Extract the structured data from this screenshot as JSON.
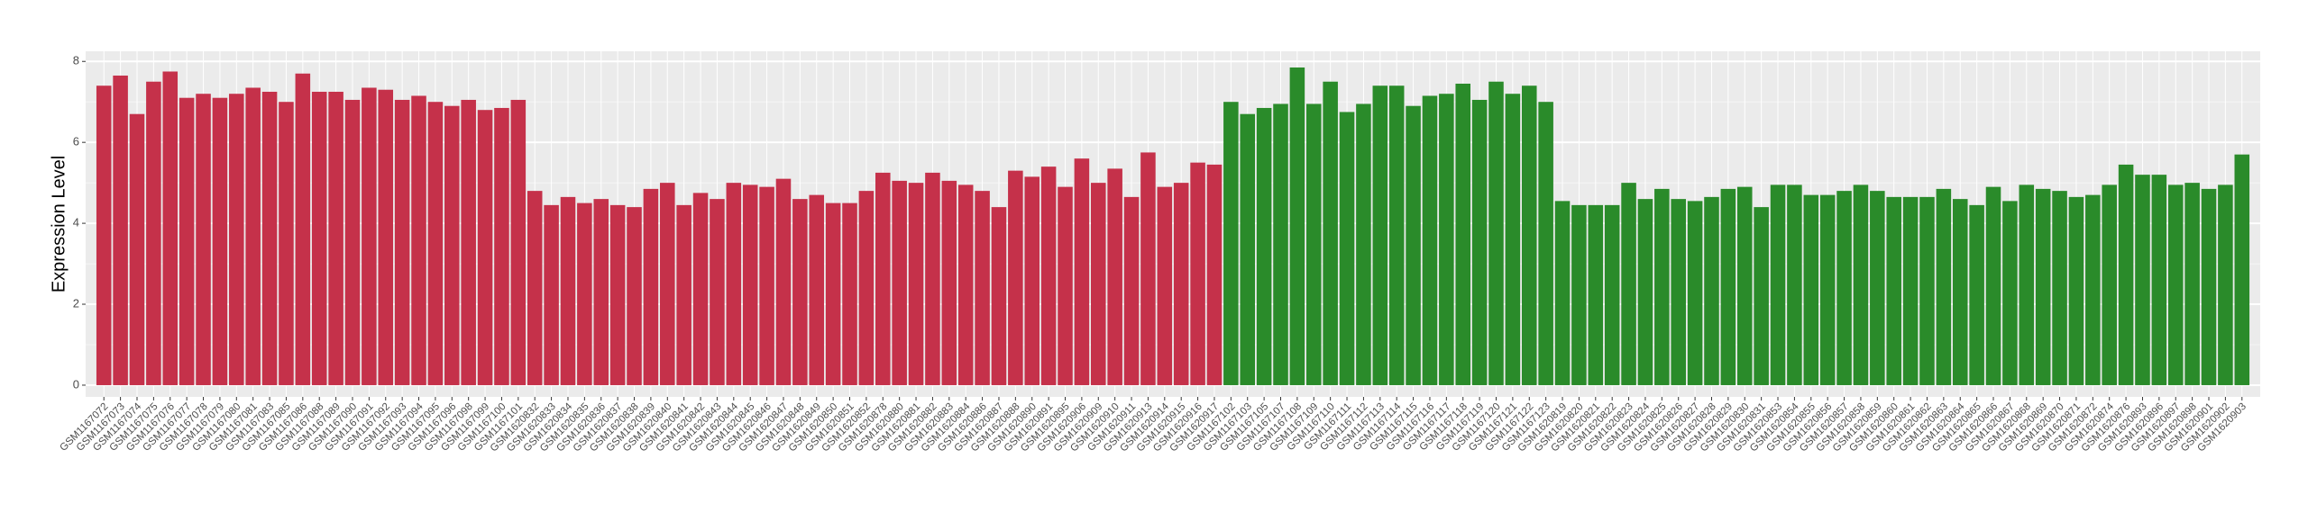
{
  "chart_data": {
    "type": "bar",
    "y_label": "Expression Level",
    "categories": [
      "GSM1167072",
      "GSM1167073",
      "GSM1167074",
      "GSM1167075",
      "GSM1167076",
      "GSM1167077",
      "GSM1167078",
      "GSM1167079",
      "GSM1167080",
      "GSM1167081",
      "GSM1167083",
      "GSM1167085",
      "GSM1167086",
      "GSM1167088",
      "GSM1167089",
      "GSM1167090",
      "GSM1167091",
      "GSM1167092",
      "GSM1167093",
      "GSM1167094",
      "GSM1167095",
      "GSM1167096",
      "GSM1167098",
      "GSM1167099",
      "GSM1167100",
      "GSM1167101",
      "GSM1620832",
      "GSM1620833",
      "GSM1620834",
      "GSM1620835",
      "GSM1620836",
      "GSM1620837",
      "GSM1620838",
      "GSM1620839",
      "GSM1620840",
      "GSM1620841",
      "GSM1620842",
      "GSM1620843",
      "GSM1620844",
      "GSM1620845",
      "GSM1620846",
      "GSM1620847",
      "GSM1620848",
      "GSM1620849",
      "GSM1620850",
      "GSM1620851",
      "GSM1620852",
      "GSM1620878",
      "GSM1620880",
      "GSM1620881",
      "GSM1620882",
      "GSM1620883",
      "GSM1620884",
      "GSM1620886",
      "GSM1620887",
      "GSM1620888",
      "GSM1620890",
      "GSM1620891",
      "GSM1620895",
      "GSM1620906",
      "GSM1620909",
      "GSM1620910",
      "GSM1620911",
      "GSM1620913",
      "GSM1620914",
      "GSM1620915",
      "GSM1620916",
      "GSM1620917",
      "GSM1167102",
      "GSM1167103",
      "GSM1167105",
      "GSM1167107",
      "GSM1167108",
      "GSM1167109",
      "GSM1167110",
      "GSM1167111",
      "GSM1167112",
      "GSM1167113",
      "GSM1167114",
      "GSM1167115",
      "GSM1167116",
      "GSM1167117",
      "GSM1167118",
      "GSM1167119",
      "GSM1167120",
      "GSM1167121",
      "GSM1167122",
      "GSM1167123",
      "GSM1620819",
      "GSM1620820",
      "GSM1620821",
      "GSM1620822",
      "GSM1620823",
      "GSM1620824",
      "GSM1620825",
      "GSM1620826",
      "GSM1620827",
      "GSM1620828",
      "GSM1620829",
      "GSM1620830",
      "GSM1620831",
      "GSM1620853",
      "GSM1620854",
      "GSM1620855",
      "GSM1620856",
      "GSM1620857",
      "GSM1620858",
      "GSM1620859",
      "GSM1620860",
      "GSM1620861",
      "GSM1620862",
      "GSM1620863",
      "GSM1620864",
      "GSM1620865",
      "GSM1620866",
      "GSM1620867",
      "GSM1620868",
      "GSM1620869",
      "GSM1620870",
      "GSM1620871",
      "GSM1620872",
      "GSM1620874",
      "GSM1620876",
      "GSM1620893",
      "GSM1620896",
      "GSM1620897",
      "GSM1620898",
      "GSM1620901",
      "GSM1620902",
      "GSM1620903"
    ],
    "values": [
      7.4,
      7.65,
      6.7,
      7.5,
      7.75,
      7.1,
      7.2,
      7.1,
      7.2,
      7.35,
      7.25,
      7.0,
      7.7,
      7.25,
      7.25,
      7.05,
      7.35,
      7.3,
      7.05,
      7.15,
      7.0,
      6.9,
      7.05,
      6.8,
      6.85,
      7.05,
      4.8,
      4.45,
      4.65,
      4.5,
      4.6,
      4.45,
      4.4,
      4.85,
      5.0,
      4.45,
      4.75,
      4.6,
      5.0,
      4.95,
      4.9,
      5.1,
      4.6,
      4.7,
      4.5,
      4.5,
      4.8,
      5.25,
      5.05,
      5.0,
      5.25,
      5.05,
      4.95,
      4.8,
      4.4,
      5.3,
      5.15,
      5.4,
      4.9,
      5.6,
      5.0,
      5.35,
      4.65,
      5.75,
      4.9,
      5.0,
      5.5,
      5.45,
      7.0,
      6.7,
      6.85,
      6.95,
      7.85,
      6.95,
      7.5,
      6.75,
      6.95,
      7.4,
      7.4,
      6.9,
      7.15,
      7.2,
      7.45,
      7.05,
      7.5,
      7.2,
      7.4,
      7.0,
      4.55,
      4.45,
      4.45,
      4.45,
      5.0,
      4.6,
      4.85,
      4.6,
      4.55,
      4.65,
      4.85,
      4.9,
      4.4,
      4.95,
      4.95,
      4.7,
      4.7,
      4.8,
      4.95,
      4.8,
      4.65,
      4.65,
      4.65,
      4.85,
      4.6,
      4.45,
      4.9,
      4.55,
      4.95,
      4.85,
      4.8,
      4.65,
      4.7,
      4.95,
      5.45,
      5.2,
      5.2,
      4.95,
      5.0,
      4.85,
      4.95,
      5.7
    ],
    "colors": [
      "#c5314a",
      "#c5314a",
      "#c5314a",
      "#c5314a",
      "#c5314a",
      "#c5314a",
      "#c5314a",
      "#c5314a",
      "#c5314a",
      "#c5314a",
      "#c5314a",
      "#c5314a",
      "#c5314a",
      "#c5314a",
      "#c5314a",
      "#c5314a",
      "#c5314a",
      "#c5314a",
      "#c5314a",
      "#c5314a",
      "#c5314a",
      "#c5314a",
      "#c5314a",
      "#c5314a",
      "#c5314a",
      "#c5314a",
      "#c5314a",
      "#c5314a",
      "#c5314a",
      "#c5314a",
      "#c5314a",
      "#c5314a",
      "#c5314a",
      "#c5314a",
      "#c5314a",
      "#c5314a",
      "#c5314a",
      "#c5314a",
      "#c5314a",
      "#c5314a",
      "#c5314a",
      "#c5314a",
      "#c5314a",
      "#c5314a",
      "#c5314a",
      "#c5314a",
      "#c5314a",
      "#c5314a",
      "#c5314a",
      "#c5314a",
      "#c5314a",
      "#c5314a",
      "#c5314a",
      "#c5314a",
      "#c5314a",
      "#c5314a",
      "#c5314a",
      "#c5314a",
      "#c5314a",
      "#c5314a",
      "#c5314a",
      "#c5314a",
      "#c5314a",
      "#c5314a",
      "#c5314a",
      "#c5314a",
      "#c5314a",
      "#c5314a",
      "#2a8b2a",
      "#2a8b2a",
      "#2a8b2a",
      "#2a8b2a",
      "#2a8b2a",
      "#2a8b2a",
      "#2a8b2a",
      "#2a8b2a",
      "#2a8b2a",
      "#2a8b2a",
      "#2a8b2a",
      "#2a8b2a",
      "#2a8b2a",
      "#2a8b2a",
      "#2a8b2a",
      "#2a8b2a",
      "#2a8b2a",
      "#2a8b2a",
      "#2a8b2a",
      "#2a8b2a",
      "#2a8b2a",
      "#2a8b2a",
      "#2a8b2a",
      "#2a8b2a",
      "#2a8b2a",
      "#2a8b2a",
      "#2a8b2a",
      "#2a8b2a",
      "#2a8b2a",
      "#2a8b2a",
      "#2a8b2a",
      "#2a8b2a",
      "#2a8b2a",
      "#2a8b2a",
      "#2a8b2a",
      "#2a8b2a",
      "#2a8b2a",
      "#2a8b2a",
      "#2a8b2a",
      "#2a8b2a",
      "#2a8b2a",
      "#2a8b2a",
      "#2a8b2a",
      "#2a8b2a",
      "#2a8b2a",
      "#2a8b2a",
      "#2a8b2a",
      "#2a8b2a",
      "#2a8b2a",
      "#2a8b2a",
      "#2a8b2a",
      "#2a8b2a",
      "#2a8b2a",
      "#2a8b2a",
      "#2a8b2a",
      "#2a8b2a",
      "#2a8b2a",
      "#2a8b2a",
      "#2a8b2a",
      "#2a8b2a",
      "#2a8b2a",
      "#2a8b2a"
    ],
    "ylim": [
      -0.29,
      8.25
    ],
    "yticks": [
      0,
      2,
      4,
      6,
      8
    ],
    "grid": true
  }
}
